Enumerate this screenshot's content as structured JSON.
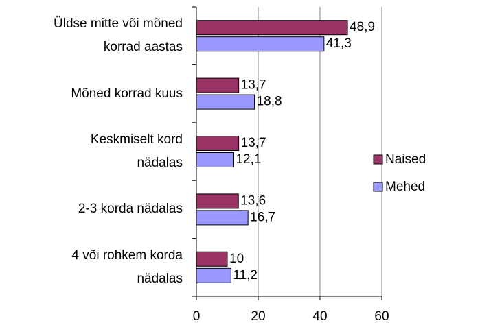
{
  "chart_data": {
    "type": "hbar",
    "categories": [
      "Üldse mitte või mõned\nkorrad aastas",
      "Mõned korrad kuus",
      "Keskmiselt kord\nnädalas",
      "2-3 korda nädalas",
      "4 või rohkem korda\nnädalas"
    ],
    "series": [
      {
        "name": "Naised",
        "color": "#993366",
        "values": [
          48.9,
          13.7,
          13.7,
          13.6,
          10
        ],
        "value_labels": [
          "48,9",
          "13,7",
          "13,7",
          "13,6",
          "10"
        ]
      },
      {
        "name": "Mehed",
        "color": "#9999ff",
        "values": [
          41.3,
          18.8,
          12.1,
          16.7,
          11.2
        ],
        "value_labels": [
          "41,3",
          "18,8",
          "12,1",
          "16,7",
          "11,2"
        ]
      }
    ],
    "xlim": [
      0,
      60
    ],
    "xticks": [
      0,
      20,
      40,
      60
    ],
    "grid": true,
    "legend": "right"
  }
}
